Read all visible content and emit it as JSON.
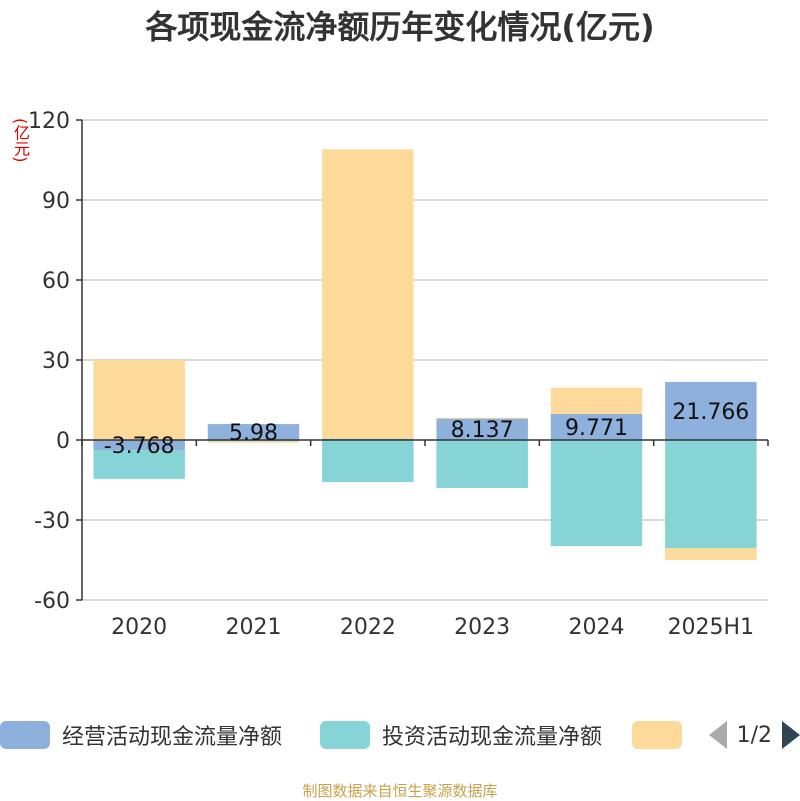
{
  "title": "各项现金流净额历年变化情况(亿元)",
  "unit_label": "(亿元)",
  "legend": {
    "items": [
      {
        "label": "经营活动现金流量净额",
        "color": "#8eb0dc"
      },
      {
        "label": "投资活动现金流量净额",
        "color": "#86d4d6"
      },
      {
        "label": "",
        "color": "#fdd99a"
      }
    ],
    "page": "1/2"
  },
  "source": "制图数据来自恒生聚源数据库",
  "chart_data": {
    "type": "bar",
    "stacked": true,
    "categories": [
      "2020",
      "2021",
      "2022",
      "2023",
      "2024",
      "2025H1"
    ],
    "ylim": [
      -60,
      120
    ],
    "yticks": [
      -60,
      -30,
      0,
      30,
      60,
      90,
      120
    ],
    "grid": true,
    "legend_position": "bottom",
    "series": [
      {
        "name": "经营活动现金流量净额",
        "color": "#8eb0dc",
        "values": [
          -3.768,
          5.98,
          0.5,
          8.137,
          9.771,
          21.766
        ],
        "labels": [
          "-3.768",
          "5.98",
          "",
          "8.137",
          "9.771",
          "21.766"
        ]
      },
      {
        "name": "投资活动现金流量净额",
        "color": "#86d4d6",
        "values": [
          -10.8,
          -0.5,
          -15.8,
          -18.0,
          -39.8,
          -40.6
        ],
        "labels": [
          "",
          "",
          "",
          "",
          "",
          ""
        ]
      },
      {
        "color": "#fdd99a",
        "values": [
          30,
          -0.5,
          108.5,
          0.2,
          9.8,
          -4.4
        ],
        "labels": [
          "",
          "",
          "",
          "",
          "",
          ""
        ]
      }
    ]
  }
}
